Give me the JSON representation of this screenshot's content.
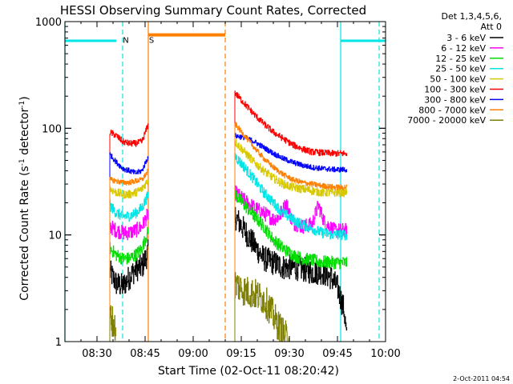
{
  "chart_data": {
    "type": "line",
    "title": "HESSI Observing Summary Count Rates, Corrected",
    "xlabel": "Start Time (02-Oct-11 08:20:42)",
    "ylabel_main": "Corrected Count Rate (s",
    "ylabel_sup1": "-1",
    "ylabel_mid": " detector",
    "ylabel_sup2": "-1",
    "ylabel_end": ")",
    "yscale": "log",
    "ylim": [
      1,
      1000
    ],
    "xlim": [
      "08:20",
      "10:00"
    ],
    "x_ticks": [
      "08:30",
      "08:45",
      "09:00",
      "09:15",
      "09:30",
      "09:45",
      "10:00"
    ],
    "y_ticks": [
      "1",
      "10",
      "100",
      "1000"
    ],
    "legend": {
      "header": [
        "Det 1,3,4,5,6,",
        "Att 0"
      ],
      "placement": "right",
      "entries": [
        {
          "label": "3 - 6 keV",
          "color": "#000000"
        },
        {
          "label": "6 - 12 keV",
          "color": "#ff00ff"
        },
        {
          "label": "12 - 25 keV",
          "color": "#00dd00"
        },
        {
          "label": "25 - 50 keV",
          "color": "#00e5e5"
        },
        {
          "label": "50 - 100 keV",
          "color": "#d8c800"
        },
        {
          "label": "100 - 300 keV",
          "color": "#ff0000"
        },
        {
          "label": "300 - 800 keV",
          "color": "#0000ff"
        },
        {
          "label": "800 - 7000 keV",
          "color": "#ff7f00"
        },
        {
          "label": "7000 - 20000 keV",
          "color": "#7f7f00"
        }
      ]
    },
    "flags": {
      "eclipse_bars": [
        {
          "start": "08:20",
          "end": "08:36",
          "value": 660,
          "color": "#00e5e5"
        },
        {
          "start": "09:46",
          "end": "10:00",
          "value": 660,
          "color": "#00e5e5"
        }
      ],
      "saa_bar": {
        "start": "08:46",
        "end": "09:10",
        "value": 750,
        "color": "#ff7f00"
      },
      "flag_labels": [
        {
          "text": "N",
          "at": "08:39",
          "color": "#00e5e5"
        },
        {
          "text": "S",
          "at": "08:47",
          "color": "#ff7f00"
        }
      ],
      "vlines": [
        {
          "at": "08:20",
          "color": "#00e5e5",
          "style": "solid"
        },
        {
          "at": "08:38",
          "color": "#00e5e5",
          "style": "dashed"
        },
        {
          "at": "08:46",
          "color": "#ff7f00",
          "style": "solid"
        },
        {
          "at": "09:10",
          "color": "#ff7f00",
          "style": "dashed"
        },
        {
          "at": "09:46",
          "color": "#00e5e5",
          "style": "solid"
        },
        {
          "at": "09:58",
          "color": "#00e5e5",
          "style": "dashed"
        }
      ]
    },
    "series": [
      {
        "name": "3 - 6 keV",
        "color": "#000000",
        "noise": 0.12,
        "segments": [
          [
            [
              "08:34",
              4.5
            ],
            [
              "08:36",
              3.5
            ],
            [
              "08:38",
              3.3
            ],
            [
              "08:40",
              4.0
            ],
            [
              "08:42",
              4.8
            ],
            [
              "08:44",
              5.0
            ],
            [
              "08:46",
              7.0
            ]
          ],
          [
            [
              "09:13",
              15
            ],
            [
              "09:16",
              11
            ],
            [
              "09:19",
              8
            ],
            [
              "09:22",
              6
            ],
            [
              "09:25",
              5.5
            ],
            [
              "09:28",
              5.0
            ],
            [
              "09:31",
              5.0
            ],
            [
              "09:34",
              4.8
            ],
            [
              "09:37",
              4.5
            ],
            [
              "09:40",
              4.5
            ],
            [
              "09:43",
              4.0
            ],
            [
              "09:45",
              3.2
            ],
            [
              "09:47",
              2.0
            ],
            [
              "09:48",
              1.0
            ]
          ]
        ]
      },
      {
        "name": "6 - 12 keV",
        "color": "#ff00ff",
        "noise": 0.07,
        "segments": [
          [
            [
              "08:34",
              12
            ],
            [
              "08:36",
              11
            ],
            [
              "08:38",
              10.5
            ],
            [
              "08:40",
              10.5
            ],
            [
              "08:42",
              11
            ],
            [
              "08:44",
              12
            ],
            [
              "08:46",
              16
            ]
          ],
          [
            [
              "09:13",
              25
            ],
            [
              "09:16",
              21
            ],
            [
              "09:19",
              18
            ],
            [
              "09:22",
              16
            ],
            [
              "09:25",
              14
            ],
            [
              "09:27",
              15
            ],
            [
              "09:29",
              20
            ],
            [
              "09:31",
              13
            ],
            [
              "09:34",
              12
            ],
            [
              "09:37",
              12.5
            ],
            [
              "09:39",
              19
            ],
            [
              "09:41",
              13
            ],
            [
              "09:44",
              11
            ],
            [
              "09:48",
              11
            ]
          ]
        ]
      },
      {
        "name": "12 - 25 keV",
        "color": "#00dd00",
        "noise": 0.06,
        "segments": [
          [
            [
              "08:34",
              7.5
            ],
            [
              "08:36",
              6.5
            ],
            [
              "08:38",
              6.0
            ],
            [
              "08:40",
              6.0
            ],
            [
              "08:42",
              6.5
            ],
            [
              "08:44",
              7.5
            ],
            [
              "08:46",
              11
            ]
          ],
          [
            [
              "09:13",
              24
            ],
            [
              "09:16",
              19
            ],
            [
              "09:19",
              15
            ],
            [
              "09:22",
              12
            ],
            [
              "09:25",
              9.0
            ],
            [
              "09:28",
              7.5
            ],
            [
              "09:31",
              6.5
            ],
            [
              "09:34",
              6.0
            ],
            [
              "09:37",
              5.8
            ],
            [
              "09:40",
              5.6
            ],
            [
              "09:44",
              5.5
            ],
            [
              "09:48",
              5.5
            ]
          ]
        ]
      },
      {
        "name": "25 - 50 keV",
        "color": "#00e5e5",
        "noise": 0.05,
        "segments": [
          [
            [
              "08:34",
              19
            ],
            [
              "08:36",
              16
            ],
            [
              "08:38",
              15
            ],
            [
              "08:40",
              15
            ],
            [
              "08:42",
              16
            ],
            [
              "08:44",
              18
            ],
            [
              "08:46",
              24
            ]
          ],
          [
            [
              "09:13",
              55
            ],
            [
              "09:16",
              43
            ],
            [
              "09:19",
              33
            ],
            [
              "09:22",
              25
            ],
            [
              "09:25",
              20
            ],
            [
              "09:28",
              16
            ],
            [
              "09:31",
              14
            ],
            [
              "09:34",
              12.5
            ],
            [
              "09:37",
              11.5
            ],
            [
              "09:40",
              10.5
            ],
            [
              "09:44",
              10
            ],
            [
              "09:48",
              10
            ]
          ]
        ]
      },
      {
        "name": "50 - 100 keV",
        "color": "#d8c800",
        "noise": 0.04,
        "segments": [
          [
            [
              "08:34",
              27
            ],
            [
              "08:36",
              25
            ],
            [
              "08:38",
              24
            ],
            [
              "08:40",
              24
            ],
            [
              "08:42",
              25
            ],
            [
              "08:44",
              27
            ],
            [
              "08:46",
              33
            ]
          ],
          [
            [
              "09:13",
              75
            ],
            [
              "09:16",
              60
            ],
            [
              "09:19",
              48
            ],
            [
              "09:22",
              40
            ],
            [
              "09:25",
              34
            ],
            [
              "09:28",
              30
            ],
            [
              "09:31",
              28
            ],
            [
              "09:34",
              27
            ],
            [
              "09:37",
              26
            ],
            [
              "09:40",
              25
            ],
            [
              "09:44",
              25
            ],
            [
              "09:48",
              25
            ]
          ]
        ]
      },
      {
        "name": "100 - 300 keV",
        "color": "#ff0000",
        "noise": 0.03,
        "segments": [
          [
            [
              "08:34",
              92
            ],
            [
              "08:36",
              85
            ],
            [
              "08:38",
              75
            ],
            [
              "08:40",
              72
            ],
            [
              "08:42",
              72
            ],
            [
              "08:44",
              75
            ],
            [
              "08:46",
              110
            ]
          ],
          [
            [
              "09:13",
              215
            ],
            [
              "09:16",
              170
            ],
            [
              "09:19",
              135
            ],
            [
              "09:22",
              110
            ],
            [
              "09:25",
              92
            ],
            [
              "09:28",
              80
            ],
            [
              "09:31",
              70
            ],
            [
              "09:34",
              64
            ],
            [
              "09:37",
              60
            ],
            [
              "09:40",
              59
            ],
            [
              "09:44",
              58
            ],
            [
              "09:48",
              58
            ]
          ]
        ]
      },
      {
        "name": "300 - 800 keV",
        "color": "#0000ff",
        "noise": 0.025,
        "segments": [
          [
            [
              "08:34",
              57
            ],
            [
              "08:36",
              48
            ],
            [
              "08:38",
              42
            ],
            [
              "08:40",
              40
            ],
            [
              "08:42",
              38
            ],
            [
              "08:44",
              40
            ],
            [
              "08:46",
              55
            ]
          ],
          [
            [
              "09:13",
              85
            ],
            [
              "09:16",
              82
            ],
            [
              "09:19",
              75
            ],
            [
              "09:22",
              66
            ],
            [
              "09:25",
              58
            ],
            [
              "09:28",
              52
            ],
            [
              "09:31",
              48
            ],
            [
              "09:34",
              45
            ],
            [
              "09:37",
              43
            ],
            [
              "09:40",
              42
            ],
            [
              "09:44",
              41
            ],
            [
              "09:48",
              41
            ]
          ]
        ]
      },
      {
        "name": "800 - 7000 keV",
        "color": "#ff7f00",
        "noise": 0.025,
        "segments": [
          [
            [
              "08:34",
              33
            ],
            [
              "08:36",
              32
            ],
            [
              "08:38",
              31
            ],
            [
              "08:40",
              31
            ],
            [
              "08:42",
              32
            ],
            [
              "08:44",
              33
            ],
            [
              "08:46",
              40
            ]
          ],
          [
            [
              "09:13",
              110
            ],
            [
              "09:16",
              85
            ],
            [
              "09:19",
              66
            ],
            [
              "09:22",
              52
            ],
            [
              "09:25",
              43
            ],
            [
              "09:28",
              37
            ],
            [
              "09:31",
              33
            ],
            [
              "09:34",
              31
            ],
            [
              "09:37",
              30
            ],
            [
              "09:40",
              29
            ],
            [
              "09:44",
              28
            ],
            [
              "09:48",
              28
            ]
          ]
        ]
      },
      {
        "name": "7000 - 20000 keV",
        "color": "#7f7f00",
        "noise": 0.15,
        "segments": [
          [
            [
              "08:34",
              1.8
            ],
            [
              "08:35",
              1.5
            ],
            [
              "08:36",
              1.2
            ]
          ],
          [
            [
              "09:13",
              3.5
            ],
            [
              "09:16",
              3.0
            ],
            [
              "09:19",
              2.8
            ],
            [
              "09:22",
              2.5
            ],
            [
              "09:24",
              2.0
            ],
            [
              "09:26",
              1.5
            ],
            [
              "09:28",
              1.2
            ],
            [
              "09:30",
              1.0
            ]
          ]
        ]
      }
    ]
  },
  "footer": {
    "timestamp": "2-Oct-2011 04:54"
  }
}
